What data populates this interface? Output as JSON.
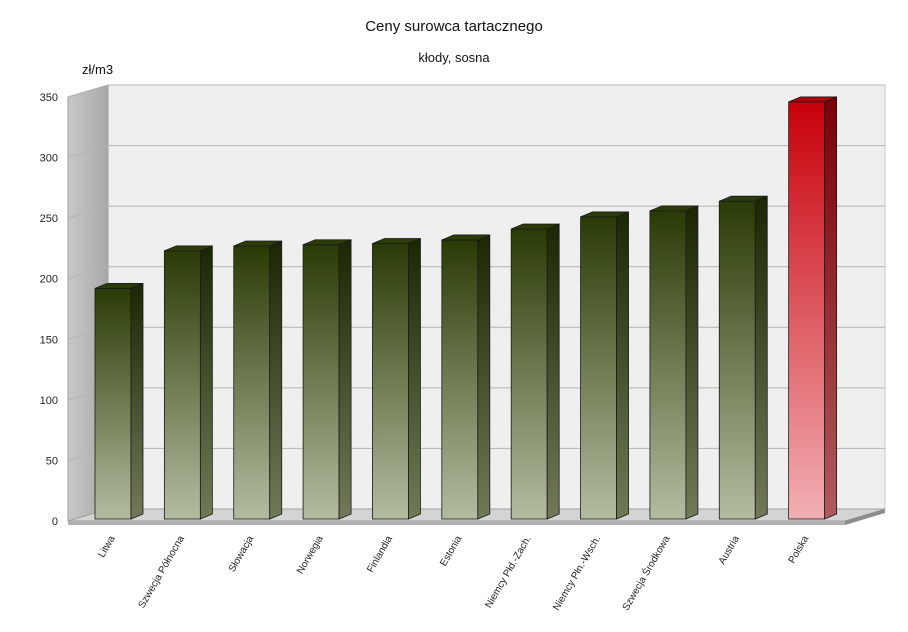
{
  "chart_data": {
    "type": "bar",
    "title": "Ceny surowca tartacznego",
    "subtitle": "kłody, sosna",
    "ylabel": "zł/m3",
    "xlabel": "",
    "ylim": [
      0,
      350
    ],
    "yticks": [
      0,
      50,
      100,
      150,
      200,
      250,
      300,
      350
    ],
    "grid": true,
    "legend": "none",
    "categories": [
      "Litwa",
      "Szwecja Północna",
      "Słowacja",
      "Norwegia",
      "Finlandia",
      "Estonia",
      "Niemcy Płd.-Zach.",
      "Niemcy Płn.-Wsch.",
      "Szwecja Środkowa",
      "Austria",
      "Polska"
    ],
    "values": [
      192,
      223,
      227,
      228,
      229,
      232,
      241,
      251,
      256,
      264,
      346
    ],
    "colors": {
      "default_bar_top": "#2a3a05",
      "default_bar_bottom": "#b4bca0",
      "highlight_bar_top": "#c8000a",
      "highlight_bar_bottom": "#f2b0b4",
      "highlight_category": "Polska"
    }
  }
}
